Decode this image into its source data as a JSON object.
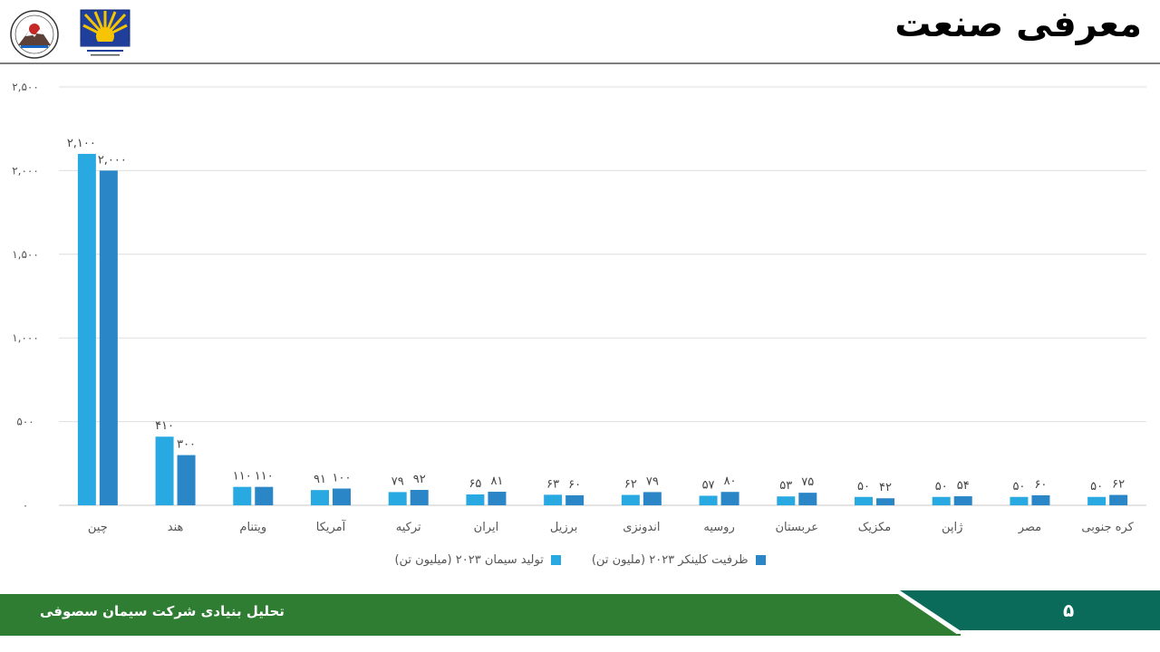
{
  "slide": {
    "title": "معرفی صنعت",
    "footer_text": "تحلیل بنیادی شرکت سیمان سصوفی",
    "page_number": "۵"
  },
  "colors": {
    "production": "#29a9e1",
    "capacity": "#2b86c7",
    "footer_green": "#2e7d32",
    "footer_teal": "#0b6b5a"
  },
  "legend": {
    "capacity_label": "ظرفیت کلینکر ۲۰۲۳ (ملیون تن)",
    "production_label": "تولید سیمان ۲۰۲۳ (میلیون تن)"
  },
  "chart_data": {
    "type": "bar",
    "categories": [
      "چین",
      "هند",
      "ویتنام",
      "آمریکا",
      "ترکیه",
      "ایران",
      "برزیل",
      "اندونزی",
      "روسیه",
      "عربستان",
      "مکزیک",
      "ژاپن",
      "مصر",
      "کره جنوبی"
    ],
    "series": [
      {
        "name": "تولید سیمان ۲۰۲۳ (میلیون تن)",
        "values": [
          2100,
          410,
          110,
          91,
          79,
          65,
          63,
          62,
          57,
          53,
          50,
          50,
          50,
          50
        ],
        "labels": [
          "۲,۱۰۰",
          "۴۱۰",
          "۱۱۰",
          "۹۱",
          "۷۹",
          "۶۵",
          "۶۳",
          "۶۲",
          "۵۷",
          "۵۳",
          "۵۰",
          "۵۰",
          "۵۰",
          "۵۰"
        ]
      },
      {
        "name": "ظرفیت کلینکر ۲۰۲۳ (ملیون تن)",
        "values": [
          2000,
          300,
          110,
          100,
          92,
          81,
          60,
          79,
          80,
          75,
          42,
          54,
          60,
          62
        ],
        "labels": [
          "۲,۰۰۰",
          "۳۰۰",
          "۱۱۰",
          "۱۰۰",
          "۹۲",
          "۸۱",
          "۶۰",
          "۷۹",
          "۸۰",
          "۷۵",
          "۴۲",
          "۵۴",
          "۶۰",
          "۶۲"
        ]
      }
    ],
    "yticks": [
      0,
      500,
      1000,
      1500,
      2000,
      2500
    ],
    "ytick_labels": [
      "۰",
      "۵۰۰",
      "۱,۰۰۰",
      "۱,۵۰۰",
      "۲,۰۰۰",
      "۲,۵۰۰"
    ],
    "ylim": [
      0,
      2500
    ],
    "grid": true,
    "legend_position": "bottom"
  }
}
